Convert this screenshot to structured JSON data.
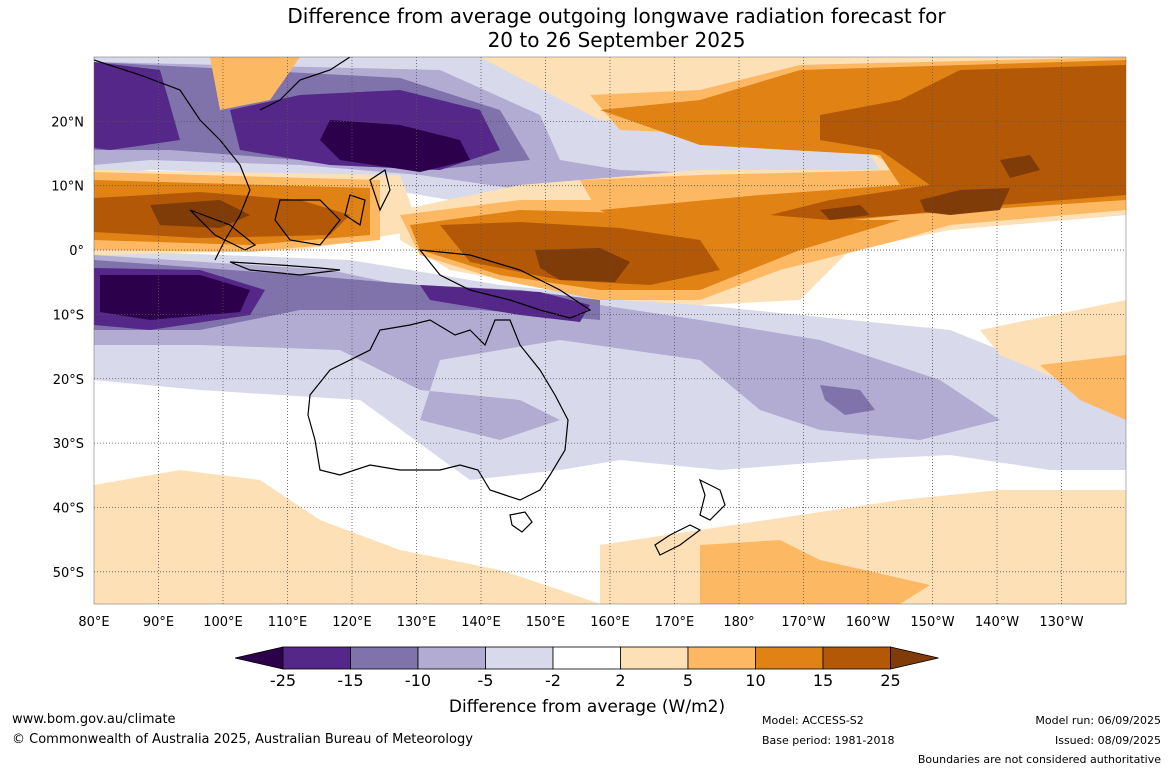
{
  "title": {
    "line1": "Difference from average outgoing longwave radiation forecast for",
    "line2": "20 to 26 September 2025"
  },
  "map": {
    "lon_labels": [
      "80°E",
      "90°E",
      "100°E",
      "110°E",
      "120°E",
      "130°E",
      "140°E",
      "150°E",
      "160°E",
      "170°E",
      "180°",
      "170°W",
      "160°W",
      "150°W",
      "140°W",
      "130°W"
    ],
    "lat_labels": [
      "20°N",
      "10°N",
      "0°",
      "10°S",
      "20°S",
      "30°S",
      "40°S",
      "50°S"
    ],
    "lat_values": [
      20,
      10,
      0,
      -10,
      -20,
      -30,
      -40,
      -50
    ],
    "lon_values": [
      80,
      90,
      100,
      110,
      120,
      130,
      140,
      150,
      160,
      170,
      180,
      190,
      200,
      210,
      220,
      230
    ],
    "lon_range": [
      80,
      240
    ],
    "lat_range": [
      -55,
      30
    ],
    "grid": true
  },
  "colorbar": {
    "tick_labels": [
      "-25",
      "-15",
      "-10",
      "-5",
      "-2",
      "2",
      "5",
      "10",
      "15",
      "25"
    ],
    "colors": [
      "#2d004b",
      "#542788",
      "#8073ac",
      "#b2abd2",
      "#d8daeb",
      "#ffffff",
      "#fee0b6",
      "#fdb863",
      "#e08214",
      "#b35806",
      "#7f3b08"
    ],
    "label": "Difference from average (W/m2)"
  },
  "footer": {
    "website": "www.bom.gov.au/climate",
    "copyright": "© Commonwealth of Australia 2025, Australian Bureau of Meteorology",
    "model": "Model: ACCESS-S2",
    "base_period": "Base period: 1981-2018",
    "model_run": "Model run: 06/09/2025",
    "issued": "Issued: 08/09/2025",
    "disclaimer": "Boundaries are not considered authoritative"
  }
}
